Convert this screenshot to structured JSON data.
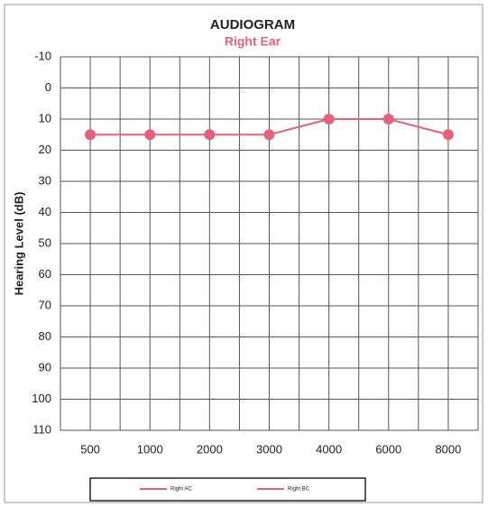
{
  "chart_data": {
    "type": "line",
    "title": "AUDIOGRAM",
    "subtitle": "Right Ear",
    "subtitle_color": "#e8607a",
    "y_label": "Hearing Level (dB)",
    "categories": [
      "500",
      "1000",
      "2000",
      "3000",
      "4000",
      "6000",
      "8000"
    ],
    "series": [
      {
        "name": "Right AC",
        "color": "#e8607a",
        "marker": true,
        "values": [
          15,
          15,
          15,
          15,
          10,
          10,
          15
        ]
      },
      {
        "name": "Right BC",
        "color": "#e8607a",
        "marker": true,
        "values": [
          null,
          null,
          null,
          null,
          null,
          null,
          null
        ]
      }
    ],
    "ylim": [
      110,
      -10
    ],
    "yticks": [
      -10,
      0,
      10,
      20,
      30,
      40,
      50,
      60,
      70,
      80,
      90,
      100,
      110
    ],
    "grid": true
  }
}
